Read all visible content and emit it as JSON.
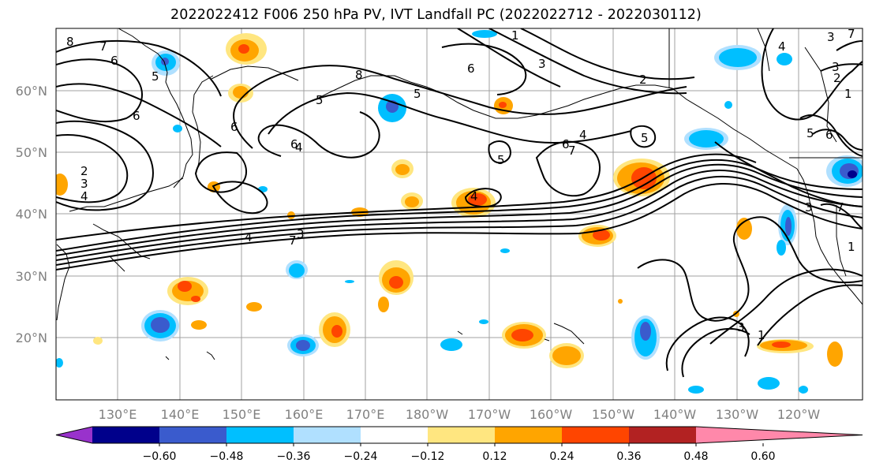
{
  "title": "2022022412 F006 250 hPa PV, IVT Landfall PC (2022022712 - 2022030112)",
  "map": {
    "lat_labels": [
      "60°N",
      "50°N",
      "40°N",
      "30°N",
      "20°N"
    ],
    "lon_labels": [
      "130°E",
      "140°E",
      "150°E",
      "160°E",
      "170°E",
      "180°W",
      "170°W",
      "160°W",
      "150°W",
      "140°W",
      "130°W",
      "120°W"
    ],
    "contour_labels": [
      "8",
      "7",
      "6",
      "6",
      "5",
      "6",
      "2",
      "3",
      "4",
      "3",
      "4",
      "7",
      "8",
      "5",
      "6",
      "4",
      "6",
      "5",
      "1",
      "2",
      "3",
      "4",
      "7",
      "6",
      "5",
      "4",
      "5",
      "3",
      "2",
      "1",
      "4",
      "7",
      "3",
      "3",
      "1",
      "5",
      "6",
      "7",
      "1",
      "3"
    ]
  },
  "colorbar": {
    "ticks": [
      "−0.60",
      "−0.48",
      "−0.36",
      "−0.24",
      "−0.12",
      "0.12",
      "0.24",
      "0.36",
      "0.48",
      "0.60"
    ],
    "colors": [
      "#9932cc",
      "#00008b",
      "#3a5bcd",
      "#00bfff",
      "#b0e0ff",
      "#ffffff",
      "#ffe680",
      "#ffa500",
      "#ff4500",
      "#b22222",
      "#ff88aa"
    ]
  }
}
